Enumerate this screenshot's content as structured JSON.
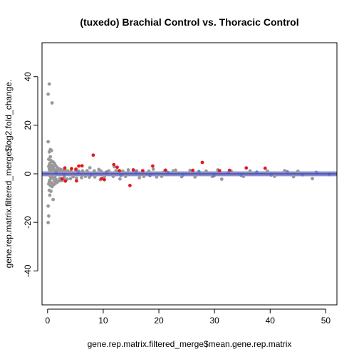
{
  "chart_data": {
    "type": "scatter",
    "title": "(tuxedo) Brachial Control vs. Thoracic Control",
    "xlabel": "gene.rep.matrix.filtered_merge$mean.gene.rep.matrix",
    "ylabel": "gene.rep.matrix.filtered_merge$log2.fold_change.",
    "xlim": [
      -1,
      52
    ],
    "ylim": [
      -54,
      54
    ],
    "xticks": [
      0,
      10,
      20,
      30,
      40,
      50
    ],
    "yticks": [
      -40,
      -20,
      0,
      20,
      40
    ],
    "band": {
      "ymin": -1,
      "ymax": 1,
      "color": "#8a8fc8"
    },
    "hline": {
      "y": 0,
      "color": "#2222aa"
    },
    "series": [
      {
        "color": "#999999",
        "points": [
          [
            0.3,
            37
          ],
          [
            0.1,
            32.8
          ],
          [
            0.8,
            29.2
          ],
          [
            0.1,
            13.2
          ],
          [
            0.5,
            10
          ],
          [
            0.7,
            9.6
          ],
          [
            0.3,
            9
          ],
          [
            0.5,
            7
          ],
          [
            0.2,
            6
          ],
          [
            0.6,
            5.5
          ],
          [
            0.9,
            5
          ],
          [
            1.1,
            4.6
          ],
          [
            0.4,
            4.3
          ],
          [
            1.3,
            4
          ],
          [
            0.3,
            3.7
          ],
          [
            0.7,
            3.5
          ],
          [
            1.5,
            3.2
          ],
          [
            0.2,
            3
          ],
          [
            1,
            2.8
          ],
          [
            0.5,
            2.5
          ],
          [
            1.8,
            2.4
          ],
          [
            0.8,
            2.2
          ],
          [
            2.1,
            2
          ],
          [
            0.3,
            2
          ],
          [
            1.2,
            1.8
          ],
          [
            2.4,
            1.7
          ],
          [
            0.6,
            1.6
          ],
          [
            2.8,
            1.5
          ],
          [
            1.6,
            1.4
          ],
          [
            3.2,
            1.3
          ],
          [
            0.4,
            1.2
          ],
          [
            3.6,
            1.2
          ],
          [
            2,
            1.1
          ],
          [
            4.2,
            1.1
          ],
          [
            0.9,
            1
          ],
          [
            5,
            1.05
          ],
          [
            5.6,
            1.1
          ],
          [
            6.3,
            1.2
          ],
          [
            7.1,
            1.3
          ],
          [
            8.4,
            1.2
          ],
          [
            9.6,
            1.1
          ],
          [
            11,
            1.2
          ],
          [
            12.3,
            1.3
          ],
          [
            13.5,
            1.1
          ],
          [
            16,
            1.2
          ],
          [
            18.2,
            1.1
          ],
          [
            21,
            1.05
          ],
          [
            25.6,
            1.4
          ],
          [
            28.5,
            1.1
          ],
          [
            33,
            1.05
          ],
          [
            36.4,
            1.2
          ],
          [
            39.5,
            1.1
          ],
          [
            42.6,
            1.3
          ],
          [
            45,
            1.05
          ],
          [
            12,
            2.9
          ],
          [
            7.6,
            2.5
          ],
          [
            9.2,
            1.8
          ],
          [
            14.5,
            1.6
          ],
          [
            19,
            1.9
          ],
          [
            23,
            1.5
          ],
          [
            30.6,
            1.6
          ],
          [
            22.6,
            1.2
          ],
          [
            0.1,
            -13.3
          ],
          [
            0.2,
            -17.4
          ],
          [
            0.1,
            -20.1
          ],
          [
            1,
            -10.6
          ],
          [
            0.4,
            -8.8
          ],
          [
            0.6,
            -7.2
          ],
          [
            0.3,
            -6.8
          ],
          [
            0.8,
            -5.3
          ],
          [
            0.5,
            -4.8
          ],
          [
            1.1,
            -4.5
          ],
          [
            0.2,
            -4.2
          ],
          [
            1.4,
            -4
          ],
          [
            0.7,
            -3.7
          ],
          [
            1.7,
            -3.5
          ],
          [
            0.3,
            -3.2
          ],
          [
            2,
            -3
          ],
          [
            1.2,
            -2.9
          ],
          [
            2.5,
            -2.8
          ],
          [
            0.4,
            -2.6
          ],
          [
            2.9,
            -2.5
          ],
          [
            1.5,
            -2.3
          ],
          [
            3.5,
            -2.2
          ],
          [
            0.6,
            -2
          ],
          [
            4.1,
            -2
          ],
          [
            2.2,
            -1.9
          ],
          [
            5.2,
            -1.8
          ],
          [
            0.9,
            -1.7
          ],
          [
            6.1,
            -1.6
          ],
          [
            3,
            -1.5
          ],
          [
            7.5,
            -1.4
          ],
          [
            1.3,
            -1.3
          ],
          [
            8.5,
            -1.3
          ],
          [
            4.6,
            -1.2
          ],
          [
            10.2,
            -1.2
          ],
          [
            0.5,
            -1.1
          ],
          [
            11.8,
            -1.1
          ],
          [
            6.8,
            -1.05
          ],
          [
            14,
            -1.1
          ],
          [
            17.3,
            -1.1
          ],
          [
            20.5,
            -1.05
          ],
          [
            24.1,
            -1.2
          ],
          [
            29.6,
            -1.1
          ],
          [
            31.3,
            -2.2
          ],
          [
            35.2,
            -1.1
          ],
          [
            40.8,
            -1.05
          ],
          [
            44.2,
            -1.2
          ],
          [
            47.6,
            -2
          ],
          [
            9.5,
            -2.4
          ],
          [
            13,
            -2.1
          ],
          [
            16.5,
            -1.6
          ],
          [
            19.6,
            -1.3
          ],
          [
            26.5,
            -1.3
          ]
        ]
      },
      {
        "color": "#e31a1c",
        "points": [
          [
            8.2,
            7.7
          ],
          [
            27.8,
            4.7
          ],
          [
            6.2,
            3.3
          ],
          [
            5.6,
            3.2
          ],
          [
            18.9,
            3.2
          ],
          [
            11.9,
            3.8
          ],
          [
            12.5,
            2.7
          ],
          [
            39.1,
            2.3
          ],
          [
            35.7,
            2.4
          ],
          [
            3.1,
            2.4
          ],
          [
            4.3,
            2.1
          ],
          [
            5.1,
            1.9
          ],
          [
            15.4,
            1.6
          ],
          [
            21.2,
            1.5
          ],
          [
            26.1,
            1.4
          ],
          [
            32.7,
            1.4
          ],
          [
            2.6,
            -2.1
          ],
          [
            3.2,
            -3
          ],
          [
            5.2,
            -2.9
          ],
          [
            10.2,
            -2.4
          ],
          [
            14.8,
            -4.8
          ],
          [
            9.7,
            -2
          ],
          [
            17.1,
            1.3
          ],
          [
            30.9,
            1.3
          ],
          [
            12.9,
            1.3
          ]
        ]
      },
      {
        "color": "#6b7bd0",
        "points": [
          [
            1.5,
            0.5
          ],
          [
            3,
            -0.4
          ],
          [
            5.5,
            0.6
          ],
          [
            7.8,
            -0.5
          ],
          [
            10.6,
            0.7
          ],
          [
            13.2,
            -0.6
          ],
          [
            15.9,
            0.8
          ],
          [
            18.4,
            -0.7
          ],
          [
            21.6,
            0.6
          ],
          [
            24.3,
            -0.5
          ],
          [
            27.2,
            0.9
          ],
          [
            29.9,
            -0.8
          ],
          [
            32.5,
            0.5
          ],
          [
            34.8,
            -0.6
          ],
          [
            37.6,
            0.7
          ],
          [
            40.2,
            -0.5
          ],
          [
            43.1,
            0.8
          ],
          [
            45.8,
            -0.4
          ],
          [
            48.3,
            0.6
          ],
          [
            50.6,
            -0.3
          ]
        ]
      }
    ]
  }
}
